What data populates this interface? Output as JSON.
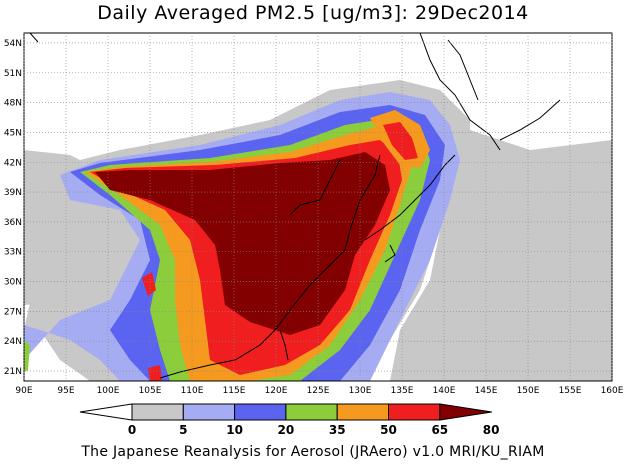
{
  "title": "Daily Averaged PM2.5 [ug/m3]: 29Dec2014",
  "footer": "The Japanese Reanalysis for Aerosol (JRAero) v1.0 MRI/KU_RIAM",
  "map": {
    "lon_range": [
      90,
      160
    ],
    "lat_range": [
      20,
      55
    ],
    "lon_ticks": [
      "90E",
      "95E",
      "100E",
      "105E",
      "110E",
      "115E",
      "120E",
      "125E",
      "130E",
      "135E",
      "140E",
      "145E",
      "150E",
      "155E",
      "160E"
    ],
    "lat_ticks": [
      "21N",
      "24N",
      "27N",
      "30N",
      "33N",
      "36N",
      "39N",
      "42N",
      "45N",
      "48N",
      "51N",
      "54N"
    ]
  },
  "colorbar": {
    "labels": [
      "0",
      "5",
      "10",
      "20",
      "35",
      "50",
      "65",
      "80"
    ],
    "colors": [
      "#ffffff",
      "#c8c8c8",
      "#a6acf2",
      "#5a64f0",
      "#8ccd3c",
      "#f59a1e",
      "#f01e1e",
      "#820000"
    ]
  }
}
